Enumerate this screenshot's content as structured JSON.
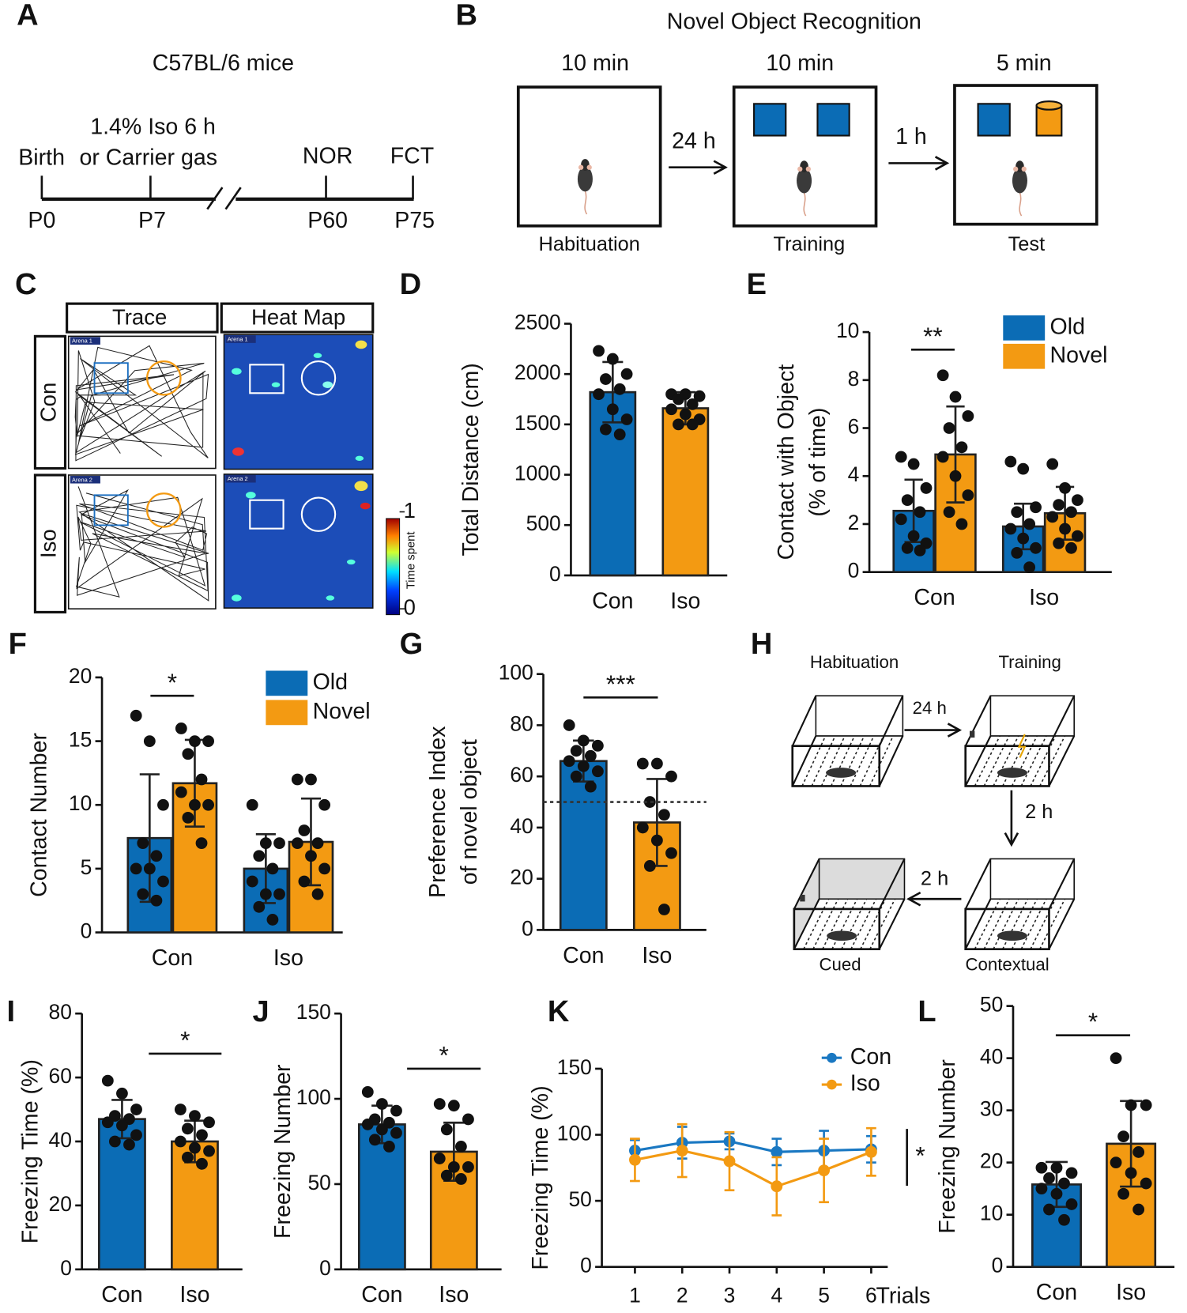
{
  "panel_labels": [
    "A",
    "B",
    "C",
    "D",
    "E",
    "F",
    "G",
    "H",
    "I",
    "J",
    "K",
    "L"
  ],
  "timeline": {
    "title": "C57BL/6 mice",
    "treatment": [
      "1.4% Iso 6 h",
      "or Carrier gas"
    ],
    "events": [
      "Birth",
      "NOR",
      "FCT"
    ],
    "ages": [
      "P0",
      "P7",
      "P60",
      "P75"
    ]
  },
  "nor_diagram": {
    "title": "Novel Object Recognition",
    "durations": [
      "10 min",
      "10 min",
      "5 min"
    ],
    "intervals": [
      "24 h",
      "1 h"
    ],
    "phases": [
      "Habituation",
      "Training",
      "Test"
    ]
  },
  "tracking": {
    "columns": [
      "Trace",
      "Heat Map"
    ],
    "rows": [
      "Con",
      "Iso"
    ],
    "arenas": [
      "Arena 1",
      "Arena 2"
    ],
    "colorbar": {
      "label": "Time spent",
      "ticks": [
        0,
        1
      ]
    }
  },
  "fear_conditioning": {
    "phases": [
      "Habituation",
      "Training",
      "Contextual",
      "Cued"
    ],
    "intervals": [
      "24 h",
      "2 h",
      "2 h"
    ]
  },
  "chart_data": [
    {
      "type": "bar",
      "categories": [
        "Con",
        "Iso"
      ],
      "colors": [
        "#0b6cb5",
        "#f39a12"
      ],
      "ylabel": "Total Distance (cm)",
      "ylim": [
        0,
        2500
      ],
      "yticks": [
        0,
        500,
        1000,
        1500,
        2000,
        2500
      ],
      "series": [
        {
          "values": [
            1820,
            1660
          ],
          "errors": [
            300,
            160
          ],
          "points": [
            [
              2230,
              2150,
              2000,
              1950,
              1850,
              1800,
              1650,
              1550,
              1450,
              1400
            ],
            [
              1800,
              1800,
              1780,
              1750,
              1700,
              1650,
              1600,
              1550,
              1500,
              1500
            ]
          ]
        }
      ]
    },
    {
      "type": "bar",
      "categories": [
        "Con",
        "Iso"
      ],
      "ylabel": [
        "Contact with Object",
        "(% of time)"
      ],
      "ylim": [
        0,
        10
      ],
      "yticks": [
        0,
        2,
        4,
        6,
        8,
        10
      ],
      "annotations": [
        "**"
      ],
      "series": [
        {
          "name": "Old",
          "color": "#0b6cb5",
          "values": [
            2.55,
            1.9
          ],
          "errors": [
            1.3,
            0.95
          ],
          "points": [
            [
              4.8,
              4.5,
              3.5,
              3.0,
              2.5,
              2.2,
              1.5,
              1.2,
              1.0,
              0.9
            ],
            [
              4.6,
              4.3,
              2.7,
              2.5,
              2.0,
              1.8,
              1.4,
              1.0,
              0.8,
              0.2
            ]
          ]
        },
        {
          "name": "Novel",
          "color": "#f39a12",
          "values": [
            4.9,
            2.45
          ],
          "errors": [
            2.0,
            1.1
          ],
          "points": [
            [
              8.2,
              7.3,
              6.5,
              6.0,
              5.2,
              4.8,
              4.0,
              3.2,
              2.5,
              2.0
            ],
            [
              4.5,
              3.5,
              3.0,
              2.8,
              2.5,
              2.3,
              1.8,
              1.5,
              1.2,
              1.0
            ]
          ]
        }
      ]
    },
    {
      "type": "bar",
      "categories": [
        "Con",
        "Iso"
      ],
      "ylabel": "Contact Number",
      "ylim": [
        0,
        20
      ],
      "yticks": [
        0,
        5,
        10,
        15,
        20
      ],
      "annotations": [
        "*"
      ],
      "series": [
        {
          "name": "Old",
          "color": "#0b6cb5",
          "values": [
            7.4,
            5.0
          ],
          "errors": [
            5.0,
            2.7
          ],
          "points": [
            [
              17,
              15,
              10,
              7,
              6,
              5,
              5,
              4,
              3,
              2.5
            ],
            [
              10,
              7,
              7,
              6,
              5,
              4,
              3,
              3,
              2,
              1
            ]
          ]
        },
        {
          "name": "Novel",
          "color": "#f39a12",
          "values": [
            11.7,
            7.1
          ],
          "errors": [
            3.4,
            3.4
          ],
          "points": [
            [
              16,
              15,
              15,
              14,
              12,
              11,
              10,
              10,
              9,
              7
            ],
            [
              12,
              12,
              10,
              8,
              7,
              7,
              6,
              5,
              4,
              3
            ]
          ]
        }
      ]
    },
    {
      "type": "bar",
      "categories": [
        "Con",
        "Iso"
      ],
      "colors": [
        "#0b6cb5",
        "#f39a12"
      ],
      "ylabel": [
        "Preference Index",
        "of novel object"
      ],
      "ylim": [
        0,
        100
      ],
      "yticks": [
        0,
        20,
        40,
        60,
        80,
        100
      ],
      "reference_line": 50,
      "annotations": [
        "***"
      ],
      "series": [
        {
          "values": [
            66,
            42
          ],
          "errors": [
            8,
            17
          ],
          "points": [
            [
              80,
              74,
              72,
              70,
              68,
              66,
              64,
              62,
              60,
              56
            ],
            [
              65,
              65,
              60,
              50,
              45,
              40,
              35,
              30,
              25,
              8
            ]
          ]
        }
      ]
    },
    {
      "type": "bar",
      "categories": [
        "Con",
        "Iso"
      ],
      "colors": [
        "#0b6cb5",
        "#f39a12"
      ],
      "ylabel": "Freezing Time (%)",
      "ylim": [
        0,
        80
      ],
      "yticks": [
        0,
        20,
        40,
        60,
        80
      ],
      "annotations": [
        "*"
      ],
      "series": [
        {
          "values": [
            47,
            40
          ],
          "errors": [
            6,
            6.5
          ],
          "points": [
            [
              59,
              55,
              50,
              48,
              47,
              46,
              45,
              42,
              40,
              39
            ],
            [
              50,
              48,
              46,
              44,
              42,
              40,
              38,
              37,
              35,
              33
            ]
          ]
        }
      ]
    },
    {
      "type": "bar",
      "categories": [
        "Con",
        "Iso"
      ],
      "colors": [
        "#0b6cb5",
        "#f39a12"
      ],
      "ylabel": "Freezing Number",
      "ylim": [
        0,
        150
      ],
      "yticks": [
        0,
        50,
        100,
        150
      ],
      "annotations": [
        "*"
      ],
      "series": [
        {
          "values": [
            85,
            69
          ],
          "errors": [
            11,
            17
          ],
          "points": [
            [
              104,
              97,
              93,
              88,
              86,
              85,
              82,
              80,
              76,
              72
            ],
            [
              97,
              96,
              88,
              82,
              72,
              65,
              60,
              60,
              55,
              53
            ]
          ]
        }
      ]
    },
    {
      "type": "line",
      "x": [
        1,
        2,
        3,
        4,
        5,
        6
      ],
      "xlim": [
        0.3,
        6.35
      ],
      "xticks": [
        1,
        2,
        3,
        4,
        5,
        6
      ],
      "xlabel": "Trials",
      "ylabel": "Freezing Time (%)",
      "ylim": [
        0,
        150
      ],
      "yticks": [
        0,
        50,
        100,
        150
      ],
      "annotations": [
        "*"
      ],
      "series": [
        {
          "name": "Con",
          "color": "#1a78c2",
          "values": [
            88,
            94,
            95,
            87,
            88,
            89
          ],
          "errors": [
            8,
            12,
            6,
            10,
            15,
            10
          ]
        },
        {
          "name": "Iso",
          "color": "#f39a12",
          "values": [
            81,
            88,
            80,
            61,
            73,
            87
          ],
          "errors": [
            16,
            20,
            22,
            22,
            24,
            18
          ]
        }
      ]
    },
    {
      "type": "bar",
      "categories": [
        "Con",
        "Iso"
      ],
      "colors": [
        "#0b6cb5",
        "#f39a12"
      ],
      "ylabel": "Freezing Number",
      "ylim": [
        0,
        50
      ],
      "yticks": [
        0,
        10,
        20,
        30,
        40,
        50
      ],
      "annotations": [
        "*"
      ],
      "series": [
        {
          "values": [
            15.8,
            23.6
          ],
          "errors": [
            4.3,
            8.2
          ],
          "points": [
            [
              19,
              19,
              18,
              17,
              16,
              15,
              14,
              12,
              11,
              9
            ],
            [
              40,
              31,
              31,
              25,
              22,
              20,
              18,
              16,
              14,
              11
            ]
          ]
        }
      ]
    }
  ]
}
